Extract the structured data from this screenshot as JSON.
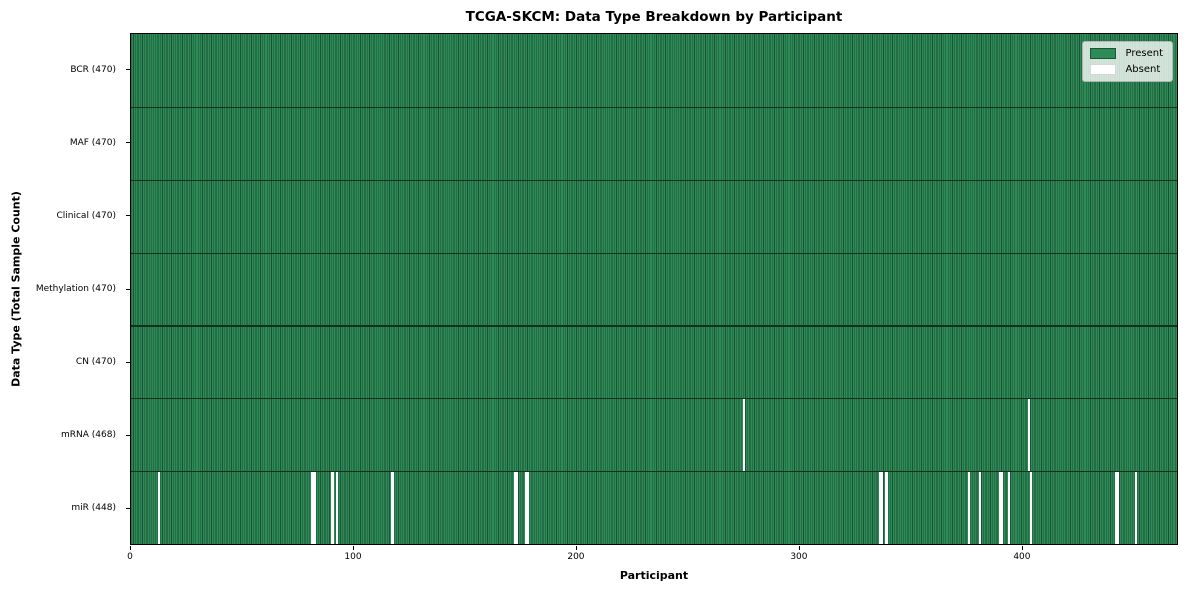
{
  "colors": {
    "present": "#2e8b57",
    "present_edge": "#1b5236",
    "absent": "#ffffff",
    "row_separator": "#14301f",
    "axis": "#000000"
  },
  "chart_data": {
    "type": "heatmap",
    "title": "TCGA-SKCM: Data Type Breakdown by Participant",
    "xlabel": "Participant",
    "ylabel": "Data Type (Total Sample Count)",
    "n_participants": 470,
    "x_ticks": [
      0,
      100,
      200,
      300,
      400
    ],
    "grid": false,
    "legend_position": "upper right",
    "legend": [
      {
        "label": "Present",
        "color": "#2e8b57"
      },
      {
        "label": "Absent",
        "color": "#ffffff"
      }
    ],
    "rows": [
      {
        "name": "BCR",
        "label": "BCR (470)",
        "present_count": 470,
        "absent_participants": []
      },
      {
        "name": "MAF",
        "label": "MAF (470)",
        "present_count": 470,
        "absent_participants": []
      },
      {
        "name": "Clinical",
        "label": "Clinical (470)",
        "present_count": 470,
        "absent_participants": []
      },
      {
        "name": "Methylation",
        "label": "Methylation (470)",
        "present_count": 470,
        "absent_participants": []
      },
      {
        "name": "CN",
        "label": "CN (470)",
        "present_count": 470,
        "absent_participants": []
      },
      {
        "name": "mRNA",
        "label": "mRNA (468)",
        "present_count": 468,
        "absent_participants": [
          275,
          403
        ]
      },
      {
        "name": "miR",
        "label": "miR (448)",
        "present_count": 448,
        "absent_participants": [
          12,
          81,
          82,
          90,
          92,
          117,
          172,
          173,
          177,
          178,
          336,
          337,
          339,
          376,
          381,
          390,
          391,
          394,
          404,
          442,
          443,
          451
        ]
      }
    ]
  }
}
